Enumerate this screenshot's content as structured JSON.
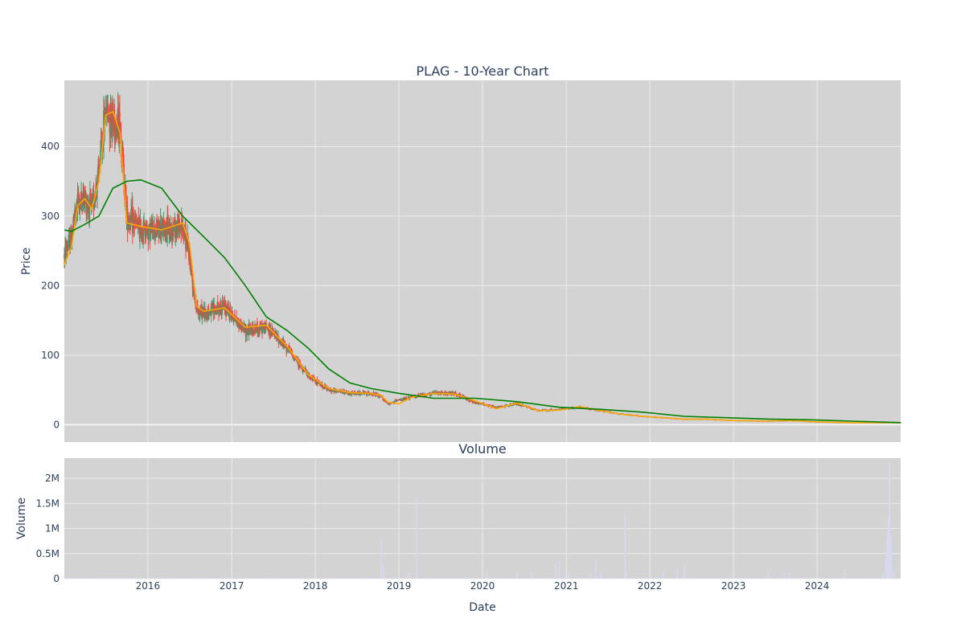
{
  "chart_data": [
    {
      "type": "candlestick",
      "title": "PLAG - 10-Year Chart",
      "ylabel": "Price",
      "ylim": [
        -25,
        495
      ],
      "yticks": [
        0,
        100,
        200,
        300,
        400
      ],
      "xlim": [
        "2015-01-01",
        "2024-12-31"
      ],
      "grid": true,
      "increasing_color": "#3d9970",
      "decreasing_color": "#ff4136",
      "series": [
        {
          "role": "close-trend",
          "x": [
            "2015-01-01",
            "2015-02-01",
            "2015-03-01",
            "2015-04-01",
            "2015-05-01",
            "2015-06-01",
            "2015-07-01",
            "2015-08-01",
            "2015-09-01",
            "2015-10-01",
            "2015-12-01",
            "2016-03-01",
            "2016-06-01",
            "2016-07-01",
            "2016-08-01",
            "2016-09-01",
            "2016-12-01",
            "2017-03-01",
            "2017-06-01",
            "2017-09-01",
            "2017-12-01",
            "2018-03-01",
            "2018-06-01",
            "2018-09-01",
            "2018-10-15",
            "2018-11-15",
            "2019-01-01",
            "2019-03-01",
            "2019-06-01",
            "2019-09-01",
            "2019-12-01",
            "2020-03-01",
            "2020-06-01",
            "2020-09-01",
            "2020-12-01",
            "2021-03-01",
            "2021-06-01",
            "2021-09-01",
            "2021-12-01",
            "2022-03-01",
            "2022-06-01",
            "2022-09-01",
            "2023-01-01",
            "2023-06-01",
            "2023-09-01",
            "2024-01-01",
            "2024-06-01",
            "2024-12-31"
          ],
          "values": [
            245,
            270,
            320,
            325,
            310,
            360,
            455,
            440,
            430,
            300,
            280,
            280,
            285,
            240,
            165,
            160,
            170,
            135,
            140,
            110,
            70,
            50,
            45,
            45,
            40,
            30,
            35,
            40,
            45,
            45,
            32,
            25,
            30,
            20,
            22,
            25,
            20,
            15,
            12,
            10,
            8,
            8,
            6,
            5,
            6,
            4,
            3,
            3
          ]
        },
        {
          "role": "moving-average-short",
          "color": "#ffa500",
          "x": [
            "2015-01-01",
            "2015-02-01",
            "2015-03-01",
            "2015-04-01",
            "2015-05-01",
            "2015-06-01",
            "2015-07-01",
            "2015-08-01",
            "2015-09-01",
            "2015-10-01",
            "2015-12-01",
            "2016-03-01",
            "2016-06-01",
            "2016-07-01",
            "2016-08-01",
            "2016-09-01",
            "2016-12-01",
            "2017-03-01",
            "2017-06-01",
            "2017-09-01",
            "2017-12-01",
            "2018-03-01",
            "2018-06-01",
            "2018-09-01",
            "2018-10-15",
            "2018-11-15",
            "2019-01-01",
            "2019-03-01",
            "2019-06-01",
            "2019-09-01",
            "2019-12-01",
            "2020-03-01",
            "2020-06-01",
            "2020-09-01",
            "2020-12-01",
            "2021-03-01",
            "2021-06-01",
            "2021-09-01",
            "2021-12-01",
            "2022-03-01",
            "2022-06-01",
            "2022-09-01",
            "2023-01-01",
            "2023-06-01",
            "2023-09-01",
            "2024-01-01",
            "2024-06-01",
            "2024-12-31"
          ],
          "values": [
            230,
            255,
            315,
            325,
            310,
            350,
            445,
            450,
            420,
            290,
            285,
            280,
            290,
            260,
            170,
            163,
            168,
            140,
            143,
            112,
            72,
            52,
            46,
            45,
            42,
            32,
            30,
            40,
            45,
            44,
            34,
            23,
            31,
            20,
            21,
            26,
            20,
            15,
            12,
            10,
            8,
            8,
            6,
            5,
            6,
            4,
            3,
            3
          ]
        },
        {
          "role": "moving-average-long",
          "color": "#008000",
          "x": [
            "2015-01-01",
            "2015-02-01",
            "2015-04-01",
            "2015-06-01",
            "2015-08-01",
            "2015-10-01",
            "2015-12-01",
            "2016-01-01",
            "2016-03-01",
            "2016-06-01",
            "2016-09-01",
            "2016-12-01",
            "2017-03-01",
            "2017-06-01",
            "2017-09-01",
            "2017-12-01",
            "2018-03-01",
            "2018-06-01",
            "2018-09-01",
            "2019-01-01",
            "2019-06-01",
            "2019-12-01",
            "2020-06-01",
            "2020-12-01",
            "2021-06-01",
            "2021-12-01",
            "2022-06-01",
            "2022-12-01",
            "2023-06-01",
            "2023-12-01",
            "2024-06-01",
            "2024-12-31"
          ],
          "values": [
            280,
            278,
            288,
            300,
            340,
            350,
            352,
            348,
            340,
            300,
            270,
            240,
            200,
            155,
            135,
            110,
            80,
            60,
            52,
            45,
            38,
            38,
            33,
            25,
            22,
            18,
            12,
            10,
            8,
            7,
            5,
            3
          ]
        }
      ]
    },
    {
      "type": "bar",
      "title": "Volume",
      "xlabel": "Date",
      "ylabel": "Volume",
      "ylim": [
        0,
        2400000
      ],
      "yticks": [
        0,
        500000,
        1000000,
        1500000,
        2000000
      ],
      "ytick_labels": [
        "0",
        "0.5M",
        "1M",
        "1.5M",
        "2M"
      ],
      "xlim": [
        "2015-01-01",
        "2024-12-31"
      ],
      "xticks": [
        "2016-01-01",
        "2017-01-01",
        "2018-01-01",
        "2019-01-01",
        "2020-01-01",
        "2021-01-01",
        "2022-01-01",
        "2023-01-01",
        "2024-01-01"
      ],
      "xtick_labels": [
        "2016",
        "2017",
        "2018",
        "2019",
        "2020",
        "2021",
        "2022",
        "2023",
        "2024"
      ],
      "color": "#d8d8ee",
      "x": [
        "2018-10-15",
        "2018-10-25",
        "2019-02-15",
        "2019-03-20",
        "2020-01-20",
        "2020-06-01",
        "2020-08-01",
        "2020-11-15",
        "2020-12-01",
        "2021-01-10",
        "2021-04-15",
        "2021-05-10",
        "2021-06-01",
        "2021-09-15",
        "2021-09-20",
        "2022-03-01",
        "2022-05-01",
        "2022-06-01",
        "2023-06-01",
        "2023-08-10",
        "2023-09-01",
        "2024-05-01",
        "2024-10-15",
        "2024-10-28",
        "2024-11-02",
        "2024-11-08",
        "2024-11-12",
        "2024-11-20",
        "2024-12-01"
      ],
      "values": [
        820000,
        300000,
        150000,
        1600000,
        180000,
        120000,
        130000,
        300000,
        350000,
        150000,
        100000,
        380000,
        150000,
        1300000,
        120000,
        150000,
        200000,
        280000,
        150000,
        120000,
        130000,
        180000,
        120000,
        400000,
        850000,
        1250000,
        2300000,
        850000,
        150000
      ]
    }
  ]
}
